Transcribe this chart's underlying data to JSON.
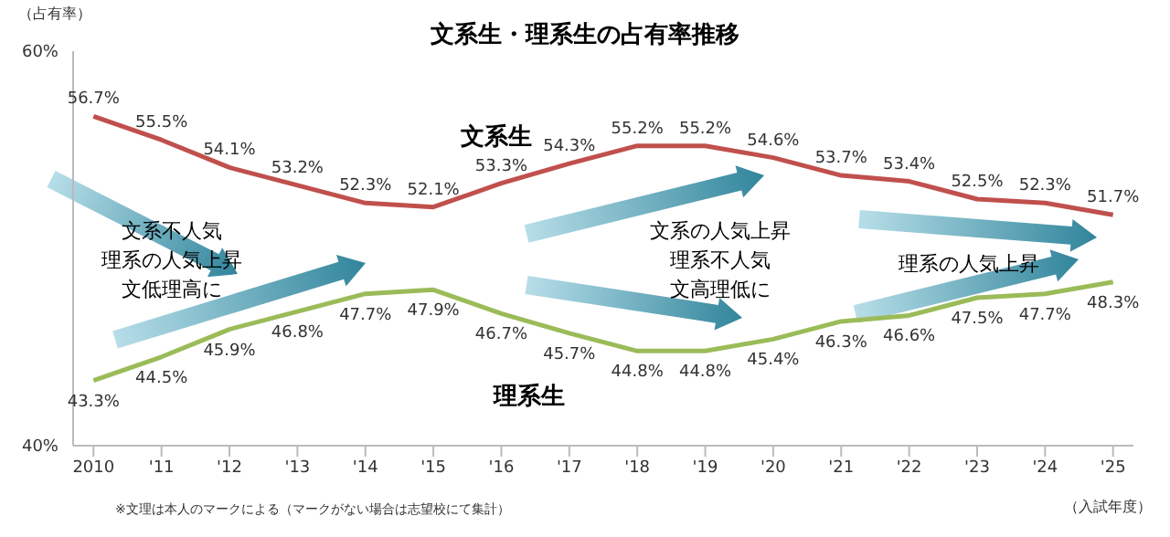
{
  "chart_data": {
    "type": "line",
    "title": "文系生・理系生の占有率推移",
    "ylabel": "（占有率）",
    "xlabel": "（入試年度）",
    "categories": [
      "2010",
      "'11",
      "'12",
      "'13",
      "'14",
      "'15",
      "'16",
      "'17",
      "'18",
      "'19",
      "'20",
      "'21",
      "'22",
      "'23",
      "'24",
      "'25"
    ],
    "series": [
      {
        "name": "文系生",
        "color": "#c0504d",
        "values": [
          56.7,
          55.5,
          54.1,
          53.2,
          52.3,
          52.1,
          53.3,
          54.3,
          55.2,
          55.2,
          54.6,
          53.7,
          53.4,
          52.5,
          52.3,
          51.7
        ],
        "value_labels": [
          "56.7%",
          "55.5%",
          "54.1%",
          "53.2%",
          "52.3%",
          "52.1%",
          "53.3%",
          "54.3%",
          "55.2%",
          "55.2%",
          "54.6%",
          "53.7%",
          "53.4%",
          "52.5%",
          "52.3%",
          "51.7%"
        ]
      },
      {
        "name": "理系生",
        "color": "#9bbb59",
        "values": [
          43.3,
          44.5,
          45.9,
          46.8,
          47.7,
          47.9,
          46.7,
          45.7,
          44.8,
          44.8,
          45.4,
          46.3,
          46.6,
          47.5,
          47.7,
          48.3
        ],
        "value_labels": [
          "43.3%",
          "44.5%",
          "45.9%",
          "46.8%",
          "47.7%",
          "47.9%",
          "46.7%",
          "45.7%",
          "44.8%",
          "44.8%",
          "45.4%",
          "46.3%",
          "46.6%",
          "47.5%",
          "47.7%",
          "48.3%"
        ]
      }
    ],
    "ylim": [
      40,
      60
    ],
    "yticks": [
      {
        "value": 40,
        "label": "40%"
      },
      {
        "value": 60,
        "label": "60%"
      }
    ],
    "grid": false,
    "legend": false,
    "marker": "none",
    "line_style": "solid",
    "annotations": [
      "文系不人気",
      "理系の人気上昇",
      "文低理高に",
      "文系の人気上昇",
      "理系不人気",
      "文高理低に",
      "理系の人気上昇",
      "※文理は本人のマークによる（マークがない場合は志望校にて集計）"
    ]
  }
}
